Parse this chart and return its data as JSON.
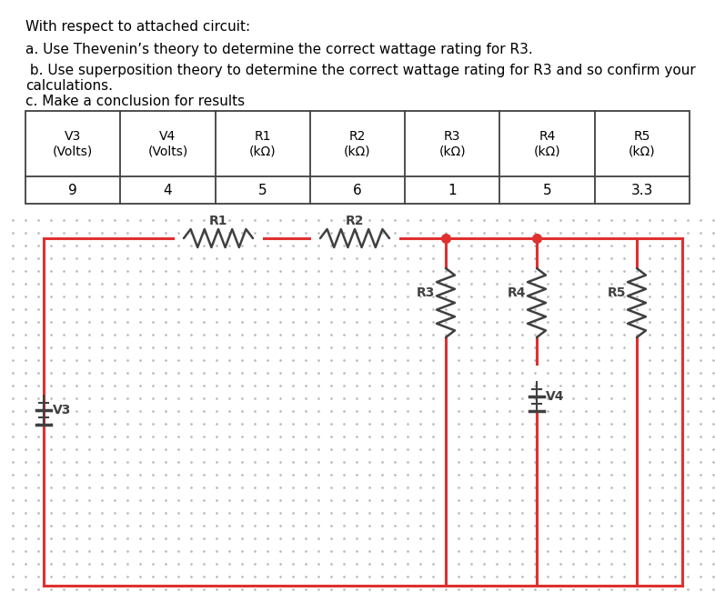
{
  "title_text": "With respect to attached circuit:",
  "q1": "a. Use Thevenin’s theory to determine the correct wattage rating for R3.",
  "q2": " b. Use superposition theory to determine the correct wattage rating for R3 and so confirm your\ncalculations.",
  "q3": "c. Make a conclusion for results",
  "table_headers": [
    "V3\n(Volts)",
    "V4\n(Volts)",
    "R1\n(kΩ)",
    "R2\n(kΩ)",
    "R3\n(kΩ)",
    "R4\n(kΩ)",
    "R5\n(kΩ)"
  ],
  "table_values": [
    "9",
    "4",
    "5",
    "6",
    "1",
    "5",
    "3.3"
  ],
  "wire_color": "#e03030",
  "component_color": "#404040",
  "dot_color": "#b8b8b8"
}
